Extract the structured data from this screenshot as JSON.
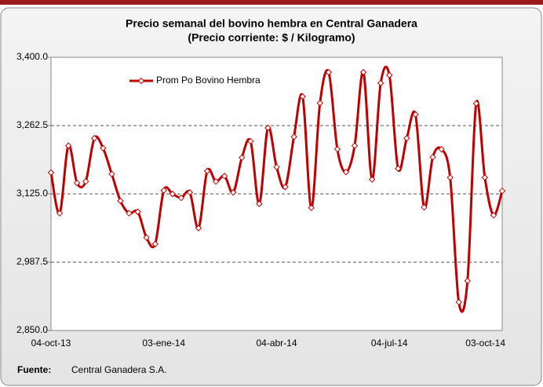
{
  "chart_data": {
    "type": "line",
    "title": "Precio semanal del bovino  hembra en Central Ganadera",
    "subtitle": "(Precio corriente: $ / Kilogramo)",
    "categories": [
      "04-oct-13",
      null,
      null,
      null,
      null,
      null,
      null,
      null,
      null,
      null,
      null,
      null,
      null,
      "03-ene-14",
      null,
      null,
      null,
      null,
      null,
      null,
      null,
      null,
      null,
      null,
      null,
      null,
      "04-abr-14",
      null,
      null,
      null,
      null,
      null,
      null,
      null,
      null,
      null,
      null,
      null,
      null,
      "04-jul-14",
      null,
      null,
      null,
      null,
      null,
      null,
      null,
      null,
      null,
      null,
      null,
      null,
      "03-oct-14"
    ],
    "series": [
      {
        "name": "Prom Po Bovino Hembra",
        "color": "#c00000",
        "values": [
          3168,
          3086,
          3222,
          3147,
          3150,
          3237,
          3217,
          3165,
          3111,
          3086,
          3089,
          3037,
          3024,
          3132,
          3125,
          3117,
          3128,
          3056,
          3171,
          3150,
          3161,
          3128,
          3198,
          3231,
          3105,
          3258,
          3179,
          3139,
          3240,
          3321,
          3097,
          3308,
          3370,
          3215,
          3169,
          3222,
          3370,
          3154,
          3348,
          3364,
          3176,
          3237,
          3285,
          3098,
          3199,
          3215,
          3158,
          2907,
          2950,
          3307,
          3158,
          3082,
          3131
        ]
      }
    ],
    "ylim": [
      2850,
      3400
    ],
    "yticks": [
      {
        "value": 2850,
        "label": "2,850.0"
      },
      {
        "value": 2987.5,
        "label": "2,987.5"
      },
      {
        "value": 3125,
        "label": "3,125.0"
      },
      {
        "value": 3262.5,
        "label": "3,262.5"
      },
      {
        "value": 3400,
        "label": "3,400.0"
      }
    ],
    "grid": true,
    "legend": "upper left",
    "source_label": "Fuente:",
    "source": "Central Ganadera S.A."
  }
}
